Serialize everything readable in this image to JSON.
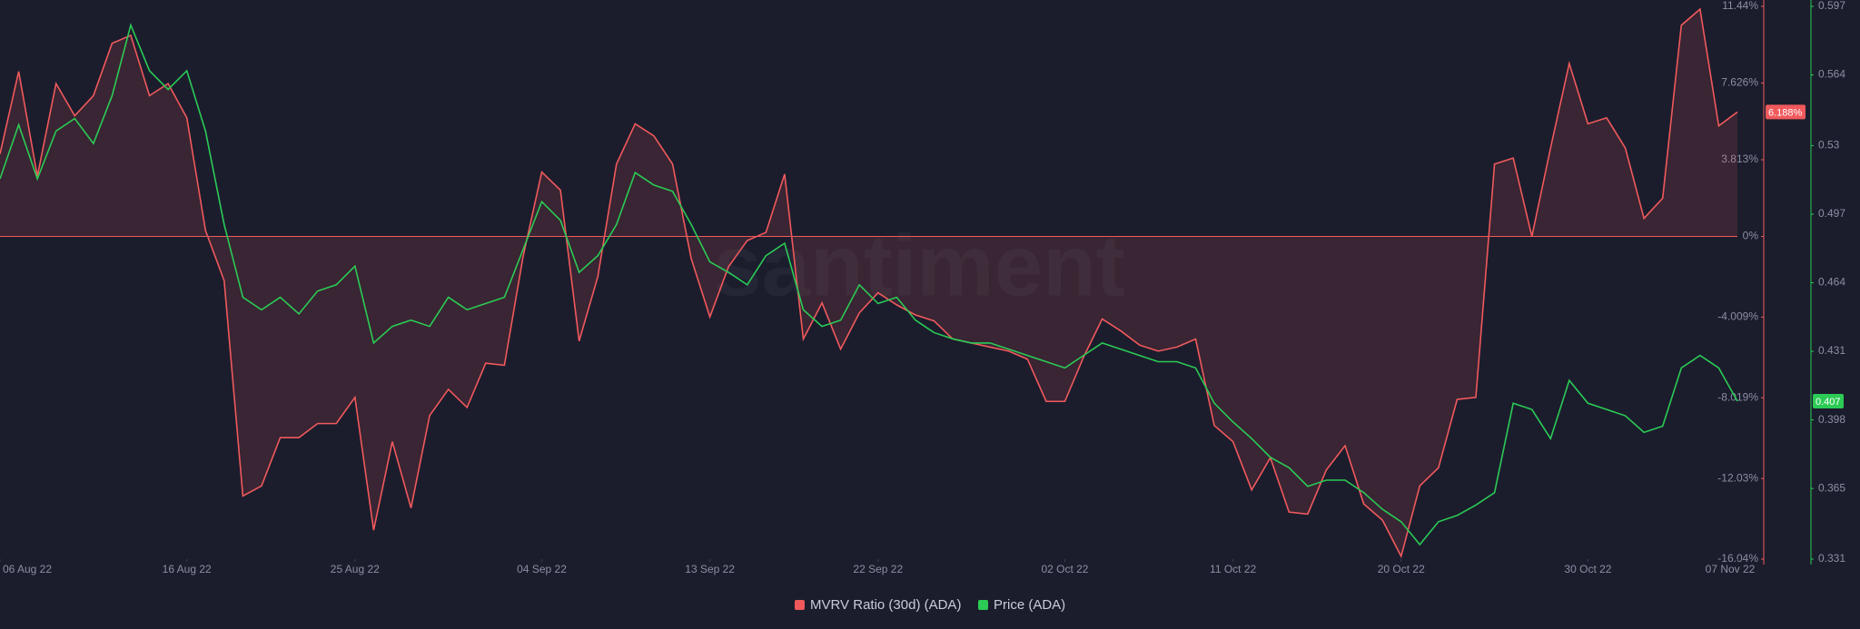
{
  "chart_data": {
    "type": "line",
    "watermark": "santiment",
    "x": [
      "2022-08-06",
      "2022-08-07",
      "2022-08-08",
      "2022-08-09",
      "2022-08-10",
      "2022-08-11",
      "2022-08-12",
      "2022-08-13",
      "2022-08-14",
      "2022-08-15",
      "2022-08-16",
      "2022-08-17",
      "2022-08-18",
      "2022-08-19",
      "2022-08-20",
      "2022-08-21",
      "2022-08-22",
      "2022-08-23",
      "2022-08-24",
      "2022-08-25",
      "2022-08-26",
      "2022-08-27",
      "2022-08-28",
      "2022-08-29",
      "2022-08-30",
      "2022-08-31",
      "2022-09-01",
      "2022-09-02",
      "2022-09-03",
      "2022-09-04",
      "2022-09-05",
      "2022-09-06",
      "2022-09-07",
      "2022-09-08",
      "2022-09-09",
      "2022-09-10",
      "2022-09-11",
      "2022-09-12",
      "2022-09-13",
      "2022-09-14",
      "2022-09-15",
      "2022-09-16",
      "2022-09-17",
      "2022-09-18",
      "2022-09-19",
      "2022-09-20",
      "2022-09-21",
      "2022-09-22",
      "2022-09-23",
      "2022-09-24",
      "2022-09-25",
      "2022-09-26",
      "2022-09-27",
      "2022-09-28",
      "2022-09-29",
      "2022-09-30",
      "2022-10-01",
      "2022-10-02",
      "2022-10-03",
      "2022-10-04",
      "2022-10-05",
      "2022-10-06",
      "2022-10-07",
      "2022-10-08",
      "2022-10-09",
      "2022-10-10",
      "2022-10-11",
      "2022-10-12",
      "2022-10-13",
      "2022-10-14",
      "2022-10-15",
      "2022-10-16",
      "2022-10-17",
      "2022-10-18",
      "2022-10-19",
      "2022-10-20",
      "2022-10-21",
      "2022-10-22",
      "2022-10-23",
      "2022-10-24",
      "2022-10-25",
      "2022-10-26",
      "2022-10-27",
      "2022-10-28",
      "2022-10-29",
      "2022-10-30",
      "2022-10-31",
      "2022-11-01",
      "2022-11-02",
      "2022-11-03",
      "2022-11-04",
      "2022-11-05",
      "2022-11-06",
      "2022-11-07"
    ],
    "xlim": [
      "2022-08-06",
      "2022-11-07"
    ],
    "xticks": [
      {
        "value": "2022-08-06",
        "label": "06 Aug 22"
      },
      {
        "value": "2022-08-16",
        "label": "16 Aug 22"
      },
      {
        "value": "2022-08-25",
        "label": "25 Aug 22"
      },
      {
        "value": "2022-09-04",
        "label": "04 Sep 22"
      },
      {
        "value": "2022-09-13",
        "label": "13 Sep 22"
      },
      {
        "value": "2022-09-22",
        "label": "22 Sep 22"
      },
      {
        "value": "2022-10-02",
        "label": "02 Oct 22"
      },
      {
        "value": "2022-10-11",
        "label": "11 Oct 22"
      },
      {
        "value": "2022-10-20",
        "label": "20 Oct 22"
      },
      {
        "value": "2022-10-30",
        "label": "30 Oct 22"
      },
      {
        "value": "2022-11-07",
        "label": "07 Nov 22"
      }
    ],
    "ylim": [
      -16.04,
      11.44
    ],
    "yticks": [
      {
        "value": 11.44,
        "label": "11.44%"
      },
      {
        "value": 7.626,
        "label": "7.626%"
      },
      {
        "value": 3.813,
        "label": "3.813%"
      },
      {
        "value": 0,
        "label": "0%"
      },
      {
        "value": -4.009,
        "label": "-4.009%"
      },
      {
        "value": -8.019,
        "label": "-8.019%"
      },
      {
        "value": -12.03,
        "label": "-12.03%"
      },
      {
        "value": -16.04,
        "label": "-16.04%"
      }
    ],
    "y2lim": [
      0.331,
      0.597
    ],
    "y2ticks": [
      0.597,
      0.564,
      0.53,
      0.497,
      0.464,
      0.431,
      0.398,
      0.365,
      0.331
    ],
    "series": [
      {
        "name": "MVRV Ratio (30d) (ADA)",
        "color": "#f0595c",
        "axis": "y",
        "area": true,
        "values": [
          4.1,
          8.2,
          3.0,
          7.6,
          6.0,
          7.0,
          9.6,
          10.0,
          7.0,
          7.6,
          5.9,
          0.3,
          -2.2,
          -12.9,
          -12.4,
          -10.0,
          -10.0,
          -9.3,
          -9.3,
          -8.0,
          -14.6,
          -10.2,
          -13.5,
          -8.9,
          -7.6,
          -8.5,
          -6.3,
          -6.4,
          -1.0,
          3.2,
          2.3,
          -5.2,
          -2.0,
          3.6,
          5.6,
          5.0,
          3.6,
          -1.1,
          -4.0,
          -1.5,
          -0.2,
          0.2,
          3.1,
          -5.1,
          -3.3,
          -5.6,
          -3.8,
          -2.8,
          -3.4,
          -3.9,
          -4.2,
          -5.1,
          -5.3,
          -5.5,
          -5.7,
          -6.1,
          -8.2,
          -8.2,
          -6.0,
          -4.1,
          -4.7,
          -5.4,
          -5.7,
          -5.5,
          -5.1,
          -9.4,
          -10.2,
          -12.6,
          -11.0,
          -13.7,
          -13.8,
          -11.6,
          -10.4,
          -13.3,
          -14.1,
          -15.9,
          -12.4,
          -11.5,
          -8.1,
          -8.0,
          3.6,
          3.9,
          0,
          4.4,
          8.6,
          5.6,
          5.9,
          4.4,
          0.9,
          1.9,
          10.5,
          11.3,
          5.5,
          6.188
        ],
        "value_labels": [
          null,
          null,
          null,
          null,
          null,
          null,
          null,
          null,
          null,
          null,
          null,
          null,
          null,
          null,
          null,
          null,
          null,
          null,
          null,
          null,
          null,
          null,
          null,
          null,
          null,
          null,
          null,
          null,
          null,
          null,
          null,
          null,
          null,
          null,
          null,
          null,
          null,
          null,
          null,
          null,
          null,
          null,
          null,
          null,
          null,
          null,
          null,
          null,
          null,
          null,
          null,
          null,
          null,
          null,
          null,
          null,
          null,
          null,
          null,
          null,
          null,
          null,
          null,
          null,
          null,
          null,
          null,
          null,
          null,
          null,
          null,
          null,
          null,
          null,
          null,
          null,
          null,
          null,
          null,
          null,
          null,
          null,
          null,
          null,
          null,
          null,
          null,
          null,
          null,
          null,
          null,
          null,
          null,
          "6.188%"
        ]
      },
      {
        "name": "Price (ADA)",
        "color": "#2bcb55",
        "axis": "y2",
        "values": [
          0.514,
          0.54,
          0.514,
          0.537,
          0.543,
          0.531,
          0.554,
          0.588,
          0.566,
          0.557,
          0.566,
          0.537,
          0.492,
          0.457,
          0.451,
          0.457,
          0.449,
          0.46,
          0.463,
          0.472,
          0.435,
          0.443,
          0.446,
          0.443,
          0.457,
          0.451,
          0.454,
          0.457,
          0.48,
          0.503,
          0.494,
          0.469,
          0.477,
          0.492,
          0.517,
          0.511,
          0.508,
          0.492,
          0.474,
          0.469,
          0.463,
          0.477,
          0.483,
          0.451,
          0.443,
          0.446,
          0.463,
          0.454,
          0.457,
          0.446,
          0.44,
          0.437,
          0.435,
          0.435,
          0.432,
          0.429,
          0.426,
          0.423,
          0.429,
          0.435,
          0.432,
          0.429,
          0.426,
          0.426,
          0.423,
          0.406,
          0.397,
          0.389,
          0.38,
          0.375,
          0.366,
          0.369,
          0.369,
          0.363,
          0.355,
          0.349,
          0.338,
          0.349,
          0.352,
          0.357,
          0.363,
          0.406,
          0.403,
          0.389,
          0.417,
          0.406,
          0.403,
          0.4,
          0.392,
          0.395,
          0.423,
          0.429,
          0.423,
          0.407
        ]
      }
    ]
  }
}
